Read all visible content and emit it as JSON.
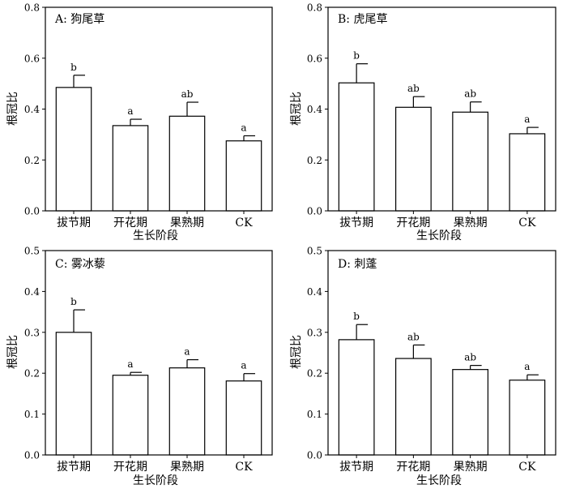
{
  "figure": {
    "xlabel": "生长阶段",
    "ylabel": "根冠比"
  },
  "chart_data": [
    {
      "type": "bar",
      "title": "A: 狗尾草",
      "xlabel": "生长阶段",
      "ylabel": "根冠比",
      "categories": [
        "拔节期",
        "开花期",
        "果熟期",
        "CK"
      ],
      "values": [
        0.485,
        0.335,
        0.372,
        0.275
      ],
      "errors": [
        0.048,
        0.025,
        0.055,
        0.02
      ],
      "significance": [
        "b",
        "a",
        "ab",
        "a"
      ],
      "ylim": [
        0.0,
        0.8
      ],
      "yticks": [
        0.0,
        0.2,
        0.4,
        0.6,
        0.8
      ],
      "ytick_labels": [
        "0.0",
        "0.2",
        "0.4",
        "0.6",
        "0.8"
      ]
    },
    {
      "type": "bar",
      "title": "B: 虎尾草",
      "xlabel": "生长阶段",
      "ylabel": "根冠比",
      "categories": [
        "拔节期",
        "开花期",
        "果熟期",
        "CK"
      ],
      "values": [
        0.503,
        0.407,
        0.388,
        0.303
      ],
      "errors": [
        0.075,
        0.042,
        0.04,
        0.025
      ],
      "significance": [
        "b",
        "ab",
        "ab",
        "a"
      ],
      "ylim": [
        0.0,
        0.8
      ],
      "yticks": [
        0.0,
        0.2,
        0.4,
        0.6,
        0.8
      ],
      "ytick_labels": [
        "0.0",
        "0.2",
        "0.4",
        "0.6",
        "0.8"
      ]
    },
    {
      "type": "bar",
      "title": "C: 雾冰藜",
      "xlabel": "生长阶段",
      "ylabel": "根冠比",
      "categories": [
        "拔节期",
        "开花期",
        "果熟期",
        "CK"
      ],
      "values": [
        0.3,
        0.195,
        0.213,
        0.181
      ],
      "errors": [
        0.055,
        0.007,
        0.02,
        0.018
      ],
      "significance": [
        "b",
        "a",
        "a",
        "a"
      ],
      "ylim": [
        0.0,
        0.5
      ],
      "yticks": [
        0.0,
        0.1,
        0.2,
        0.3,
        0.4,
        0.5
      ],
      "ytick_labels": [
        "0.0",
        "0.1",
        "0.2",
        "0.3",
        "0.4",
        "0.5"
      ]
    },
    {
      "type": "bar",
      "title": "D: 刺蓬",
      "xlabel": "生长阶段",
      "ylabel": "根冠比",
      "categories": [
        "拔节期",
        "开花期",
        "果熟期",
        "CK"
      ],
      "values": [
        0.282,
        0.236,
        0.209,
        0.183
      ],
      "errors": [
        0.037,
        0.033,
        0.01,
        0.013
      ],
      "significance": [
        "b",
        "ab",
        "ab",
        "a"
      ],
      "ylim": [
        0.0,
        0.5
      ],
      "yticks": [
        0.0,
        0.1,
        0.2,
        0.3,
        0.4,
        0.5
      ],
      "ytick_labels": [
        "0.0",
        "0.1",
        "0.2",
        "0.3",
        "0.4",
        "0.5"
      ]
    }
  ]
}
